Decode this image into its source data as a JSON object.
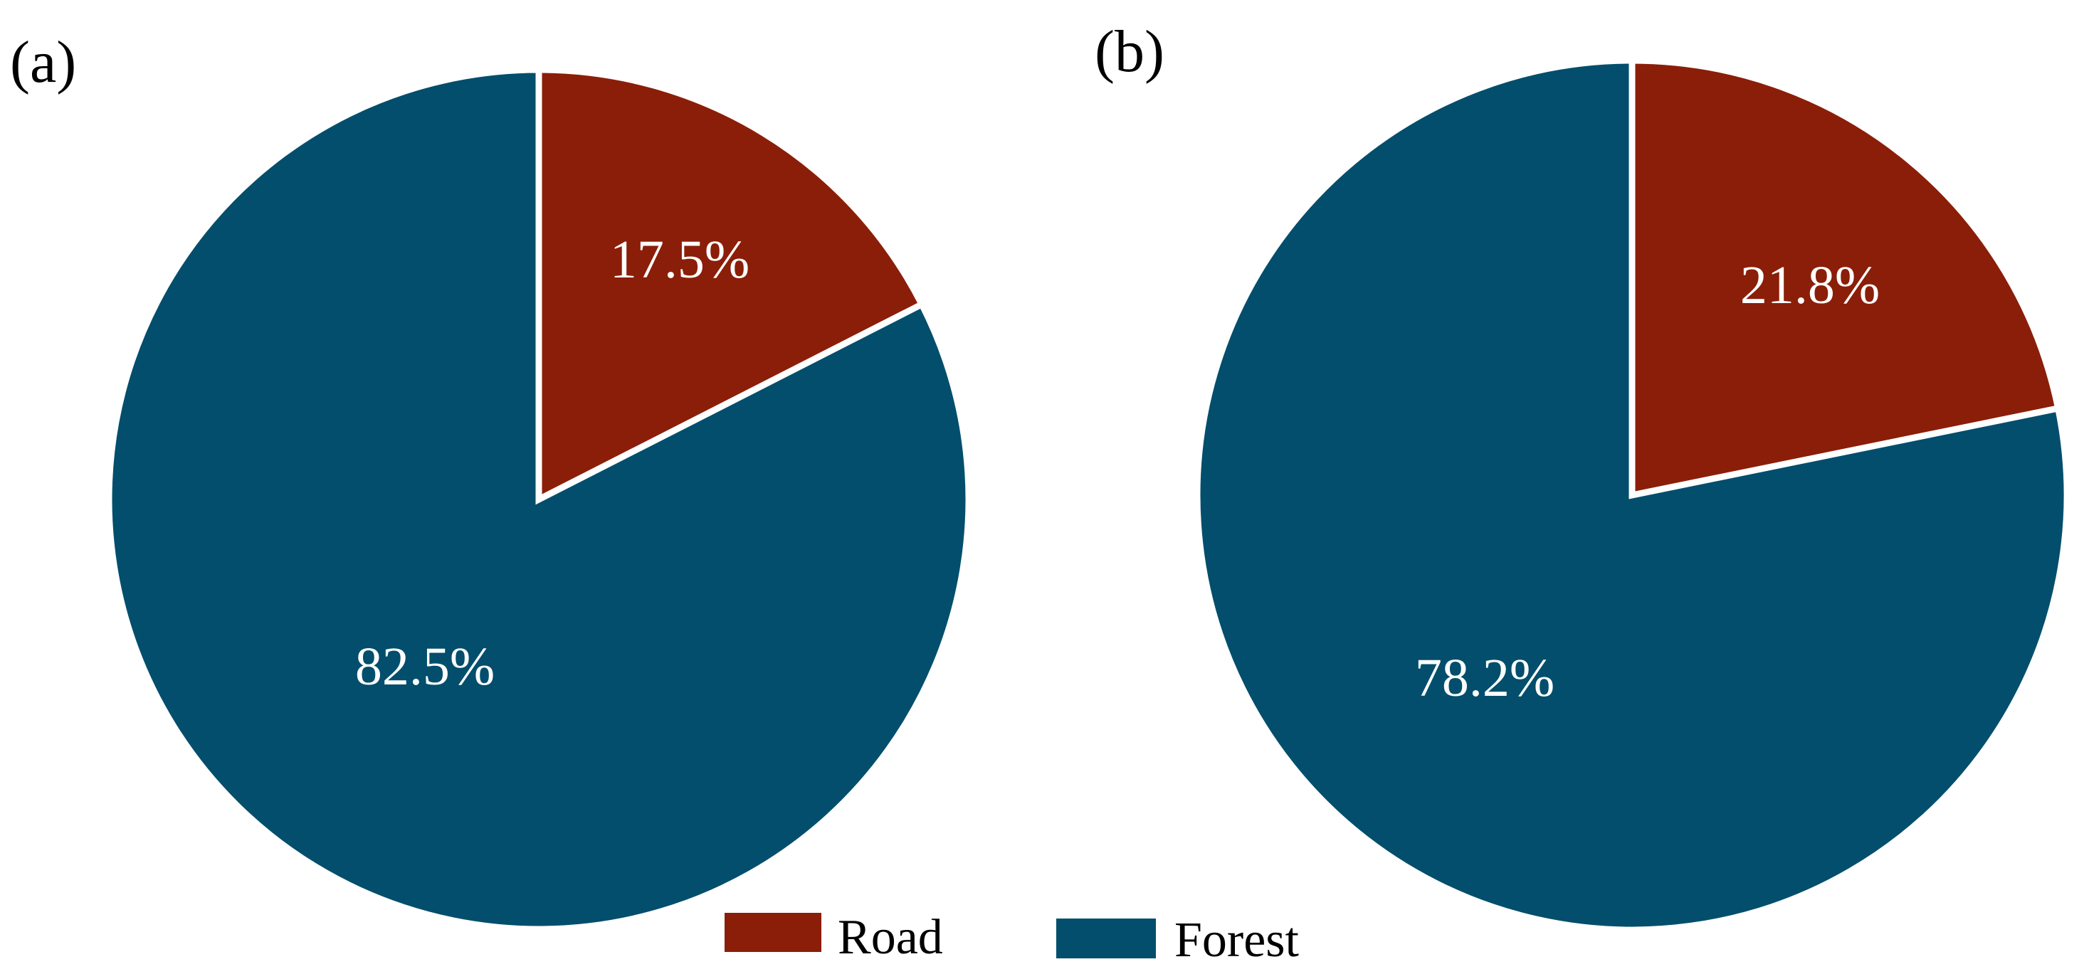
{
  "colors": {
    "road": "#8B1E08",
    "forest": "#024E6C",
    "slice_border": "#ffffff"
  },
  "legend": {
    "items": [
      {
        "label": "Road",
        "color": "#8B1E08"
      },
      {
        "label": "Forest",
        "color": "#024E6C"
      }
    ]
  },
  "chart_data": [
    {
      "type": "pie",
      "panel_label": "(a)",
      "categories": [
        "Road",
        "Forest"
      ],
      "values": [
        17.5,
        82.5
      ],
      "labels": [
        "17.5%",
        "82.5%"
      ],
      "start_angle": "12 o'clock",
      "direction": "clockwise"
    },
    {
      "type": "pie",
      "panel_label": "(b)",
      "categories": [
        "Road",
        "Forest"
      ],
      "values": [
        21.8,
        78.2
      ],
      "labels": [
        "21.8%",
        "78.2%"
      ],
      "start_angle": "12 o'clock",
      "direction": "clockwise"
    }
  ]
}
